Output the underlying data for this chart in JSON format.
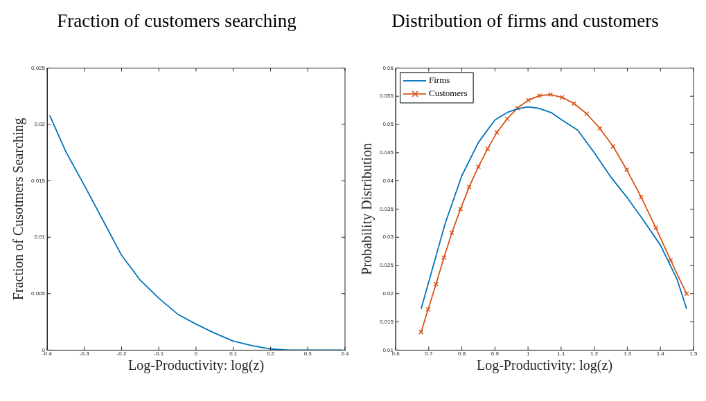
{
  "chart_data": [
    {
      "type": "line",
      "title": "Fraction of customers searching",
      "xlabel": "Log-Productivity: log(z)",
      "ylabel": "Fraction of Cusotmers Searching",
      "xlim": [
        -0.4,
        0.4
      ],
      "xticks": [
        -0.4,
        -0.3,
        -0.2,
        -0.1,
        0,
        0.1,
        0.2,
        0.3,
        0.4
      ],
      "ylim": [
        0,
        0.025
      ],
      "yticks": [
        0,
        0.005,
        0.01,
        0.015,
        0.02,
        0.025
      ],
      "grid": false,
      "legend": false,
      "marker": "none",
      "line_style": "solid",
      "series": [
        {
          "color": "#0072bd",
          "x": [
            -0.393,
            -0.35,
            -0.3,
            -0.25,
            -0.2,
            -0.15,
            -0.1,
            -0.05,
            0,
            0.05,
            0.1,
            0.15,
            0.2,
            0.25,
            0.3,
            0.35,
            0.393
          ],
          "values": [
            0.0208,
            0.0176,
            0.0146,
            0.0115,
            0.0084,
            0.0062,
            0.0046,
            0.0032,
            0.0023,
            0.0015,
            0.0008,
            0.0004,
            0.0001,
            0,
            0,
            0,
            0
          ]
        }
      ]
    },
    {
      "type": "line",
      "title": "Distribution of firms and customers",
      "xlabel": "Log-Productivity: log(z)",
      "ylabel": "Probability Distribution",
      "xlim": [
        0.6,
        1.5
      ],
      "xticks": [
        0.6,
        0.7,
        0.8,
        0.9,
        1,
        1.1,
        1.2,
        1.3,
        1.4,
        1.5
      ],
      "ylim": [
        0.01,
        0.06
      ],
      "yticks": [
        0.01,
        0.015,
        0.02,
        0.025,
        0.03,
        0.035,
        0.04,
        0.045,
        0.05,
        0.055,
        0.06
      ],
      "grid": false,
      "legend": "top left",
      "line_style": "solid",
      "series": [
        {
          "name": "Firms",
          "color": "#0072bd",
          "marker": "none",
          "x": [
            0.677,
            0.7,
            0.75,
            0.8,
            0.85,
            0.9,
            0.94,
            0.97,
            1.0,
            1.03,
            1.07,
            1.1,
            1.15,
            1.2,
            1.25,
            1.3,
            1.35,
            1.4,
            1.45,
            1.479
          ],
          "values": [
            0.0173,
            0.0221,
            0.0325,
            0.0409,
            0.0468,
            0.0508,
            0.0522,
            0.0528,
            0.0531,
            0.0529,
            0.0521,
            0.0509,
            0.049,
            0.045,
            0.0407,
            0.037,
            0.0329,
            0.0286,
            0.0226,
            0.0173
          ]
        },
        {
          "name": "Customers",
          "color": "#d95319",
          "marker": "cross",
          "x": [
            0.677,
            0.698,
            0.722,
            0.746,
            0.77,
            0.796,
            0.822,
            0.85,
            0.878,
            0.906,
            0.937,
            0.968,
            1.001,
            1.035,
            1.068,
            1.103,
            1.139,
            1.177,
            1.217,
            1.257,
            1.298,
            1.342,
            1.386,
            1.431,
            1.479
          ],
          "values": [
            0.0132,
            0.0172,
            0.0217,
            0.0264,
            0.0308,
            0.035,
            0.0389,
            0.0425,
            0.0457,
            0.0486,
            0.051,
            0.0529,
            0.0543,
            0.0551,
            0.0553,
            0.0548,
            0.0537,
            0.0519,
            0.0493,
            0.0461,
            0.042,
            0.0371,
            0.0317,
            0.0259,
            0.02
          ]
        }
      ]
    }
  ]
}
